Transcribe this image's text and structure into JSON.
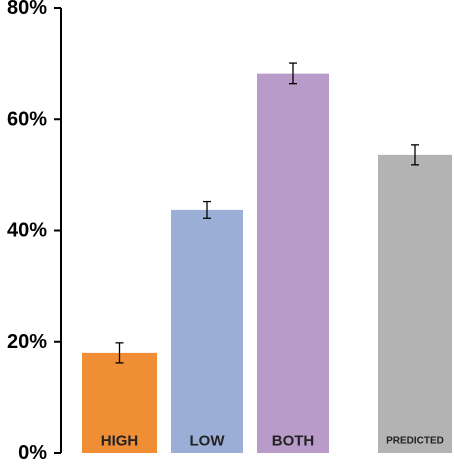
{
  "chart_data": {
    "type": "bar",
    "title": "",
    "xlabel": "",
    "ylabel": "",
    "categories": [
      "HIGH",
      "LOW",
      "BOTH",
      "PREDICTED"
    ],
    "values": [
      18,
      43.7,
      68.2,
      53.6
    ],
    "error_bars": [
      {
        "low": 16.2,
        "high": 19.8
      },
      {
        "low": 42.2,
        "high": 45.2
      },
      {
        "low": 66.4,
        "high": 70.1
      },
      {
        "low": 51.8,
        "high": 55.4
      }
    ],
    "colors": [
      "#F08E35",
      "#9BAFD6",
      "#B89BC9",
      "#B3B3B3"
    ],
    "ylim": [
      0,
      80
    ],
    "yticks": [
      0,
      20,
      40,
      60,
      80
    ],
    "ytick_labels": [
      "0%",
      "20%",
      "40%",
      "60%",
      "80%"
    ],
    "grid": false,
    "legend": "none",
    "label_position": "inside-bottom"
  }
}
